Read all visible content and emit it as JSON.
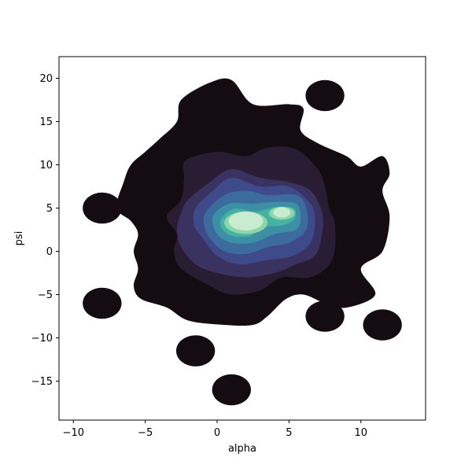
{
  "chart_data": {
    "type": "kde-contour",
    "title": "",
    "xlabel": "alpha",
    "ylabel": "psi",
    "xlim": [
      -11,
      14.5
    ],
    "ylim": [
      -19.5,
      22.5
    ],
    "x_ticks": [
      -10,
      -5,
      0,
      5,
      10
    ],
    "y_ticks": [
      -15,
      -10,
      -5,
      0,
      5,
      10,
      15,
      20
    ],
    "x_tick_labels": [
      "−10",
      "−5",
      "0",
      "5",
      "10"
    ],
    "y_tick_labels": [
      "−15",
      "−10",
      "−5",
      "0",
      "5",
      "10",
      "15",
      "20"
    ],
    "grid": false,
    "legend": "none",
    "fill": true,
    "colormap": "mako",
    "level_colors": [
      "#150c12",
      "#2a1c33",
      "#3a3260",
      "#3e4a8a",
      "#3c6b9e",
      "#3d8fa6",
      "#45b2a2",
      "#8dd6ab",
      "#c8ecd0"
    ],
    "density_peaks": [
      {
        "alpha": 2.0,
        "psi": 3.5
      },
      {
        "alpha": 4.5,
        "psi": 4.5
      }
    ],
    "outlier_clusters": [
      {
        "alpha": 7.5,
        "psi": 18
      },
      {
        "alpha": -8,
        "psi": 5
      },
      {
        "alpha": -8,
        "psi": -6
      },
      {
        "alpha": -1.5,
        "psi": -11.5
      },
      {
        "alpha": 1,
        "psi": -16
      },
      {
        "alpha": 11.5,
        "psi": -8.5
      },
      {
        "alpha": 7.5,
        "psi": -7.5
      }
    ]
  }
}
